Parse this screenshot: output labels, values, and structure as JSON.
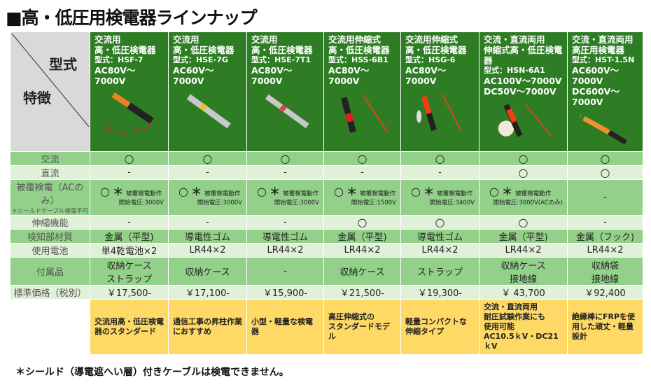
{
  "title": "■高・低圧用検電器ラインナップ",
  "corner": {
    "top": "型式",
    "bottom": "特徴"
  },
  "products": [
    {
      "name1": "交流用",
      "name2": "高・低圧検電器",
      "model": "型式：HSF-7",
      "range1": "AC80V～7000V",
      "range2": ""
    },
    {
      "name1": "交流用",
      "name2": "高・低圧検電器",
      "model": "型式：HSE-7G",
      "range1": "AC60V～7000V",
      "range2": ""
    },
    {
      "name1": "交流用",
      "name2": "高・低圧検電器",
      "model": "型式：HSE-7T1",
      "range1": "AC80V～7000V",
      "range2": ""
    },
    {
      "name1": "交流用伸縮式",
      "name2": "高・低圧検電器",
      "model": "型式：HSS-6B1",
      "range1": "AC80V～7000V",
      "range2": ""
    },
    {
      "name1": "交流用伸縮式",
      "name2": "高・低圧検電器",
      "model": "型式：HSG-6",
      "range1": "AC80V～7000V",
      "range2": ""
    },
    {
      "name1": "交流・直流両用",
      "name2": "伸縮式高・低圧検電器",
      "model": "型式：HSN-6A1",
      "range1": "AC100V～7000V",
      "range2": "DC50V～7000V"
    },
    {
      "name1": "交流・直流両用",
      "name2": "高圧用検電器",
      "model": "型式：HST-1.5N",
      "range1": "AC600V～7000V",
      "range2": "DC600V～7000V"
    }
  ],
  "rows": {
    "ac": {
      "label": "交流",
      "values": [
        "○",
        "○",
        "○",
        "○",
        "○",
        "○",
        "○"
      ]
    },
    "dc": {
      "label": "直流",
      "values": [
        "-",
        "-",
        "-",
        "-",
        "-",
        "○",
        "○"
      ]
    },
    "coated": {
      "label": "被覆検電（ACのみ）",
      "sublabel": "＊シールドケーブル検電不可",
      "mark": "○",
      "ast": "＊",
      "action": "被覆検電動作",
      "values": [
        "開始電圧:3000V",
        "開始電圧:3000V",
        "開始電圧:3000V",
        "開始電圧:1500V",
        "開始電圧:3400V",
        "開始電圧:3000V(ACのみ)"
      ],
      "last": "-"
    },
    "telescopic": {
      "label": "伸縮機能",
      "values": [
        "-",
        "-",
        "-",
        "○",
        "○",
        "○",
        "-"
      ]
    },
    "material": {
      "label": "検知部材質",
      "values": [
        "金属（平型)",
        "導電性ゴム",
        "導電性ゴム",
        "金属（平型)",
        "導電性ゴム",
        "金属（平型)",
        "金属（フック)"
      ]
    },
    "battery": {
      "label": "使用電池",
      "values": [
        "単4乾電池×2",
        "LR44×2",
        "LR44×2",
        "LR44×2",
        "LR44×2",
        "LR44×2",
        "LR44×2"
      ]
    },
    "accessories": {
      "label": "付属品",
      "values": [
        "収納ケース\nストラップ",
        "収納ケース",
        "-",
        "収納ケース",
        "ストラップ",
        "収納ケース\n接地線",
        "収納袋\n接地線"
      ]
    },
    "price": {
      "label": "標準価格（税別）",
      "values": [
        "￥17,500-",
        "￥17,100-",
        "￥15,900-",
        "￥21,500-",
        "￥19,300-",
        "￥ 43,700",
        "￥92,400"
      ]
    }
  },
  "features": [
    "交流用高・低圧検電器のスタンダード",
    "通信工事の昇柱作業におすすめ",
    "小型・軽量な検電器",
    "高圧伸縮式の\nスタンダードモデル",
    "軽量コンパクトな\n伸縮タイプ",
    "交流・直流両用\n耐圧試験作業にも\n使用可能\nAC10.5ｋV・DC21ｋV",
    "絶縁棒にFRPを使用した頑丈・軽量設計"
  ],
  "footnote": "＊シールド（導電遮へい層）付きケーブルは検電できません。",
  "colors": {
    "header": "#2e7d24",
    "row_dark": "#93d18a",
    "row_light": "#e1f1d9",
    "feature": "#ffd966",
    "corner": "#d9d9d9"
  }
}
